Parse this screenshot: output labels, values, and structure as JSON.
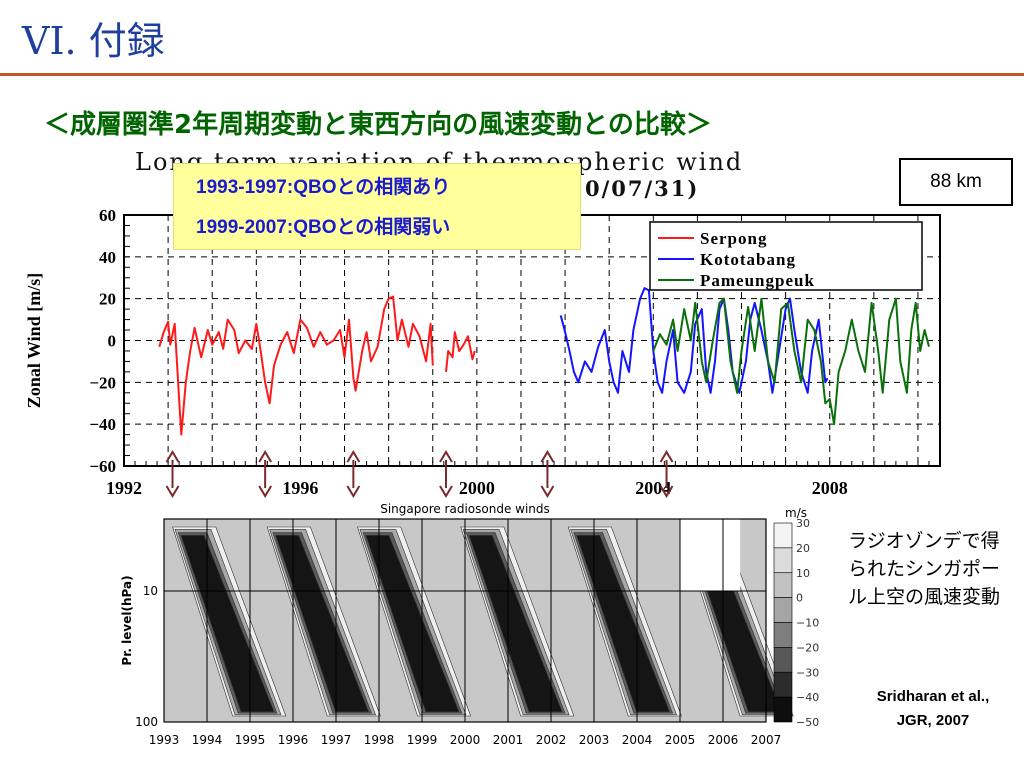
{
  "slide": {
    "title": "VI. 付録",
    "subtitle": "＜成層圏準2年周期変動と東西方向の風速変動との比較＞",
    "chart_title": "Long term variation of thermospheric wind",
    "chart_title_tail": "0/07/31)",
    "note_lines": [
      "1993-1997:QBOとの相関あり",
      "1999-2007:QBOとの相関弱い"
    ],
    "altitude_label": "88 km",
    "caption": "ラジオゾンデで得られたシンガポール上空の風速変動",
    "source_lines": [
      "Sridharan et al.,",
      "JGR, 2007"
    ]
  },
  "colors": {
    "title": "#1f3f9f",
    "subtitle": "#006400",
    "rule": "#c0572a",
    "note_bg": "#ffff9c",
    "note_text": "#1a1acf",
    "arrow": "#7a2a2a"
  },
  "marker_years": [
    1993.1,
    1995.2,
    1997.2,
    1999.3,
    2001.6,
    2004.3
  ],
  "chart_data": [
    {
      "type": "line",
      "xlim": [
        1992,
        2010.5
      ],
      "ylim": [
        -60,
        60
      ],
      "ylabel": "Zonal Wind [m/s]",
      "xticks": [
        1992,
        1996,
        2000,
        2004,
        2008
      ],
      "yticks": [
        60,
        40,
        20,
        0,
        -20,
        -40,
        -60
      ],
      "ytick_labels": [
        "60",
        "40",
        "20",
        "0",
        "−20",
        "−40",
        "−60"
      ],
      "grid": true,
      "legend": "top-right",
      "series": [
        {
          "name": "Serpong",
          "color": "#ff1a1a",
          "segments": [
            [
              [
                1992.8,
                -3
              ],
              [
                1992.9,
                4
              ],
              [
                1993.0,
                9
              ],
              [
                1993.05,
                -2
              ],
              [
                1993.15,
                8
              ],
              [
                1993.25,
                -28
              ],
              [
                1993.3,
                -45
              ],
              [
                1993.4,
                -20
              ],
              [
                1993.5,
                -5
              ],
              [
                1993.6,
                6
              ],
              [
                1993.75,
                -8
              ],
              [
                1993.9,
                5
              ],
              [
                1994.0,
                -2
              ],
              [
                1994.15,
                4
              ],
              [
                1994.25,
                -4
              ],
              [
                1994.35,
                10
              ],
              [
                1994.5,
                5
              ],
              [
                1994.6,
                -6
              ],
              [
                1994.75,
                0
              ],
              [
                1994.9,
                -4
              ],
              [
                1995.0,
                8
              ],
              [
                1995.1,
                -5
              ],
              [
                1995.2,
                -20
              ],
              [
                1995.3,
                -30
              ],
              [
                1995.4,
                -12
              ],
              [
                1995.55,
                -2
              ],
              [
                1995.7,
                4
              ],
              [
                1995.85,
                -6
              ],
              [
                1996.0,
                10
              ],
              [
                1996.15,
                6
              ],
              [
                1996.3,
                -3
              ],
              [
                1996.45,
                4
              ],
              [
                1996.6,
                -2
              ],
              [
                1996.75,
                0
              ],
              [
                1996.9,
                5
              ],
              [
                1997.0,
                -8
              ],
              [
                1997.1,
                10
              ],
              [
                1997.2,
                -18
              ],
              [
                1997.25,
                -24
              ],
              [
                1997.4,
                -5
              ],
              [
                1997.5,
                4
              ],
              [
                1997.6,
                -10
              ],
              [
                1997.75,
                -3
              ],
              [
                1997.9,
                15
              ],
              [
                1998.0,
                20
              ],
              [
                1998.1,
                21
              ],
              [
                1998.2,
                0
              ],
              [
                1998.3,
                10
              ],
              [
                1998.45,
                -3
              ],
              [
                1998.55,
                8
              ],
              [
                1998.7,
                2
              ],
              [
                1998.85,
                -10
              ],
              [
                1998.95,
                8
              ],
              [
                1999.0,
                -12
              ]
            ],
            [
              [
                1999.3,
                -15
              ],
              [
                1999.35,
                -5
              ],
              [
                1999.45,
                -8
              ],
              [
                1999.5,
                4
              ],
              [
                1999.6,
                -5
              ],
              [
                1999.7,
                -2
              ],
              [
                1999.8,
                2
              ],
              [
                1999.9,
                -9
              ],
              [
                1999.95,
                -5
              ]
            ]
          ]
        },
        {
          "name": "Kototabang",
          "color": "#1414ff",
          "segments": [
            [
              [
                2001.9,
                12
              ],
              [
                2002.0,
                4
              ],
              [
                2002.1,
                -5
              ],
              [
                2002.2,
                -15
              ],
              [
                2002.3,
                -20
              ],
              [
                2002.45,
                -10
              ],
              [
                2002.6,
                -15
              ],
              [
                2002.75,
                -3
              ],
              [
                2002.9,
                5
              ],
              [
                2003.0,
                -10
              ],
              [
                2003.1,
                -20
              ],
              [
                2003.2,
                -25
              ],
              [
                2003.3,
                -5
              ],
              [
                2003.45,
                -15
              ],
              [
                2003.55,
                5
              ],
              [
                2003.7,
                20
              ],
              [
                2003.8,
                25
              ],
              [
                2003.9,
                24
              ],
              [
                2004.0,
                -5
              ],
              [
                2004.1,
                -20
              ],
              [
                2004.2,
                -25
              ],
              [
                2004.3,
                -10
              ],
              [
                2004.45,
                5
              ],
              [
                2004.55,
                -20
              ],
              [
                2004.7,
                -25
              ],
              [
                2004.85,
                -15
              ],
              [
                2004.95,
                8
              ],
              [
                2005.1,
                15
              ],
              [
                2005.2,
                -15
              ],
              [
                2005.3,
                -25
              ],
              [
                2005.4,
                -10
              ],
              [
                2005.5,
                15
              ],
              [
                2005.6,
                20
              ],
              [
                2005.7,
                5
              ],
              [
                2005.8,
                -15
              ],
              [
                2005.95,
                -25
              ],
              [
                2006.1,
                -10
              ],
              [
                2006.2,
                10
              ],
              [
                2006.3,
                18
              ],
              [
                2006.45,
                5
              ],
              [
                2006.6,
                -10
              ],
              [
                2006.7,
                -25
              ],
              [
                2006.85,
                -5
              ],
              [
                2007.0,
                15
              ],
              [
                2007.1,
                20
              ],
              [
                2007.2,
                5
              ],
              [
                2007.35,
                -15
              ],
              [
                2007.5,
                -25
              ],
              [
                2007.6,
                -5
              ],
              [
                2007.75,
                10
              ],
              [
                2007.9,
                -20
              ],
              [
                2007.95,
                -18
              ]
            ]
          ]
        },
        {
          "name": "Pameungpeuk",
          "color": "#0a700a",
          "segments": [
            [
              [
                2004.0,
                -5
              ],
              [
                2004.15,
                3
              ],
              [
                2004.3,
                -2
              ],
              [
                2004.45,
                10
              ],
              [
                2004.55,
                -5
              ],
              [
                2004.7,
                15
              ],
              [
                2004.85,
                0
              ],
              [
                2004.95,
                18
              ],
              [
                2005.1,
                -10
              ],
              [
                2005.2,
                -20
              ],
              [
                2005.35,
                0
              ],
              [
                2005.5,
                18
              ],
              [
                2005.6,
                20
              ],
              [
                2005.75,
                -10
              ],
              [
                2005.9,
                -25
              ],
              [
                2006.0,
                -5
              ],
              [
                2006.15,
                16
              ],
              [
                2006.3,
                -5
              ],
              [
                2006.45,
                20
              ],
              [
                2006.6,
                -10
              ],
              [
                2006.75,
                -20
              ],
              [
                2006.9,
                15
              ],
              [
                2007.05,
                18
              ],
              [
                2007.2,
                -5
              ],
              [
                2007.35,
                -20
              ],
              [
                2007.5,
                10
              ],
              [
                2007.65,
                5
              ],
              [
                2007.8,
                -10
              ],
              [
                2007.9,
                -30
              ],
              [
                2008.0,
                -28
              ],
              [
                2008.1,
                -40
              ],
              [
                2008.2,
                -15
              ],
              [
                2008.35,
                -5
              ],
              [
                2008.5,
                10
              ],
              [
                2008.65,
                -5
              ],
              [
                2008.8,
                -15
              ],
              [
                2008.95,
                18
              ],
              [
                2009.1,
                -5
              ],
              [
                2009.2,
                -25
              ],
              [
                2009.35,
                10
              ],
              [
                2009.5,
                20
              ],
              [
                2009.6,
                -10
              ],
              [
                2009.75,
                -25
              ],
              [
                2009.85,
                5
              ],
              [
                2009.95,
                18
              ],
              [
                2010.05,
                -5
              ],
              [
                2010.15,
                5
              ],
              [
                2010.25,
                -3
              ]
            ]
          ]
        }
      ]
    },
    {
      "type": "heatmap",
      "title": "Singapore radiosonde winds",
      "ylabel": "Pr. level(hPa)",
      "xlim": [
        1993,
        2007
      ],
      "xticks": [
        1993,
        1994,
        1995,
        1996,
        1997,
        1998,
        1999,
        2000,
        2001,
        2002,
        2003,
        2004,
        2005,
        2006,
        2007
      ],
      "yticks": [
        10,
        100
      ],
      "colorbar": {
        "unit": "m/s",
        "levels": [
          30,
          20,
          10,
          0,
          -10,
          -20,
          -30,
          -40,
          -50
        ],
        "level_labels": [
          "30",
          "20",
          "10",
          "0",
          "−10",
          "−20",
          "−30",
          "−40",
          "−50"
        ]
      }
    }
  ]
}
